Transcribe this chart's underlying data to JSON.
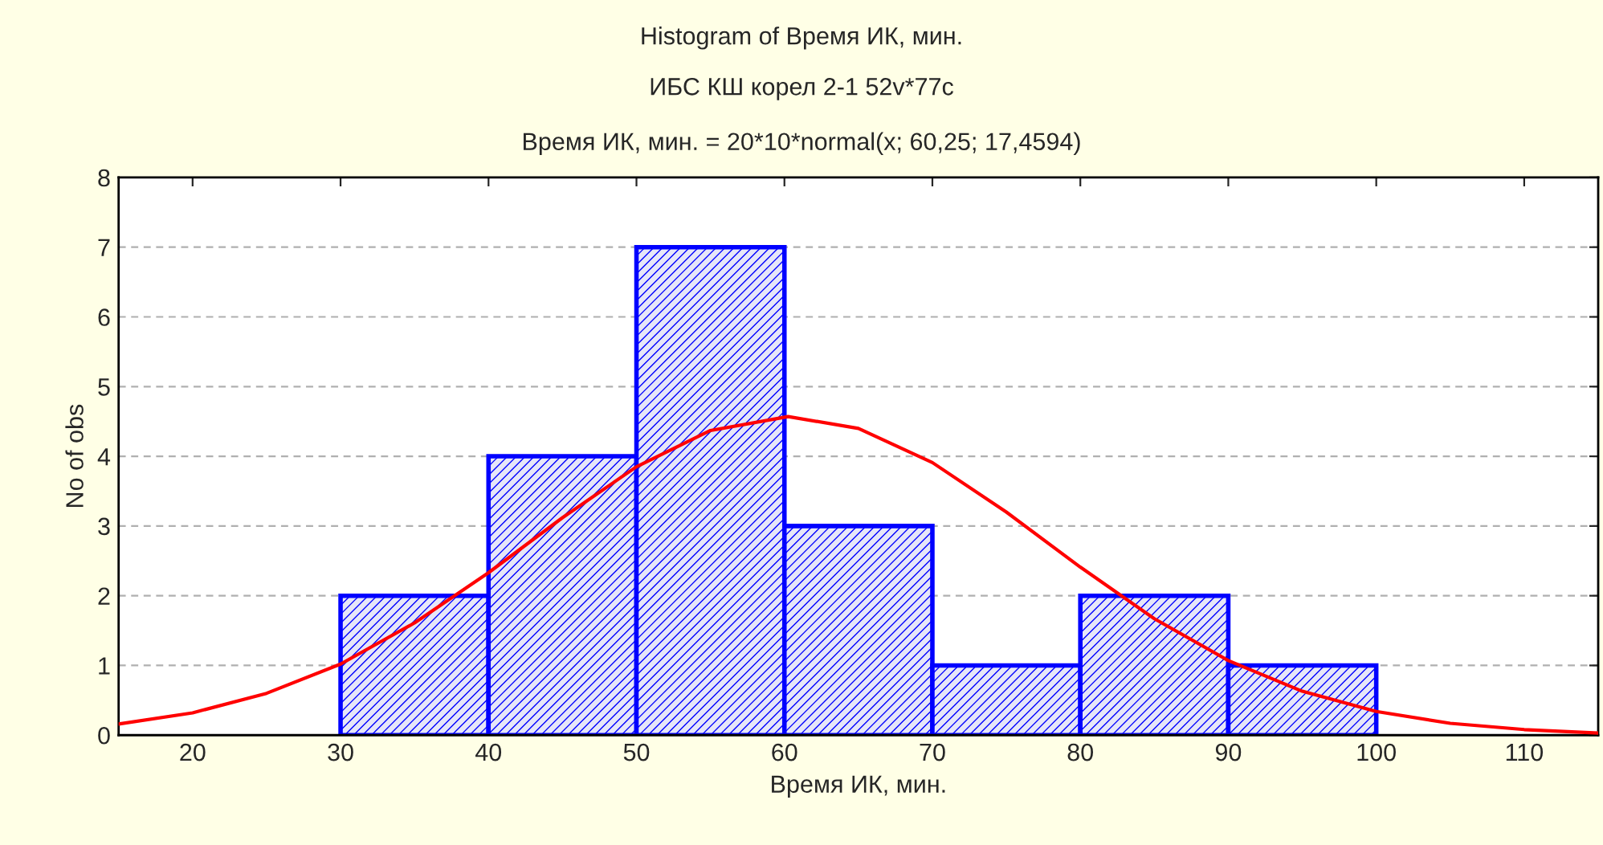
{
  "chart_data": {
    "type": "histogram",
    "title": "Histogram of Время ИК, мин.",
    "subtitle": "ИБС КШ корел 2-1 52v*77c",
    "annotations": [
      "Время ИК, мин. = 20*10*normal(x; 60,25; 17,4594)"
    ],
    "xlabel": "Время ИК, мин.",
    "ylabel": "No of obs",
    "bins": [
      30,
      40,
      50,
      60,
      70,
      80,
      90,
      100
    ],
    "values": [
      2,
      4,
      7,
      3,
      1,
      2,
      1
    ],
    "color": "#0000ff",
    "series": [
      {
        "type": "line",
        "color": "#ff0000",
        "x": [
          15,
          20,
          25,
          30,
          35,
          40,
          45,
          50,
          55,
          60.25,
          65,
          70,
          75,
          80,
          85,
          90,
          95,
          100,
          105,
          110,
          115
        ],
        "values": [
          0.16,
          0.32,
          0.6,
          1.02,
          1.61,
          2.33,
          3.12,
          3.85,
          4.37,
          4.57,
          4.4,
          3.91,
          3.2,
          2.41,
          1.67,
          1.07,
          0.63,
          0.34,
          0.17,
          0.08,
          0.03
        ]
      }
    ],
    "xlim": [
      15,
      115
    ],
    "xticks": [
      20,
      30,
      40,
      50,
      60,
      70,
      80,
      90,
      100,
      110
    ],
    "ylim": [
      0,
      8
    ],
    "yticks": [
      0,
      1,
      2,
      3,
      4,
      5,
      6,
      7,
      8
    ],
    "grid": "y"
  }
}
